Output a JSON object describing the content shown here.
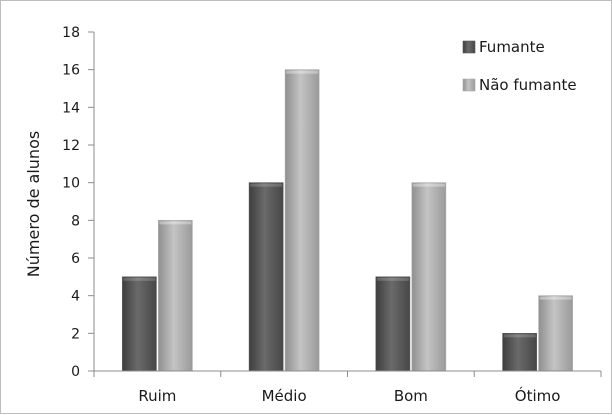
{
  "chart_data": {
    "type": "bar",
    "categories": [
      "Ruim",
      "Médio",
      "Bom",
      "Ótimo"
    ],
    "series": [
      {
        "name": "Fumante",
        "values": [
          5,
          10,
          5,
          2
        ],
        "color": "#555555"
      },
      {
        "name": "Não fumante",
        "values": [
          8,
          16,
          10,
          4
        ],
        "color": "#ababab"
      }
    ],
    "ylabel": "Número de alunos",
    "xlabel": "",
    "ylim": [
      0,
      18
    ],
    "yticks": [
      "0",
      "2",
      "4",
      "6",
      "8",
      "10",
      "12",
      "14",
      "16",
      "18"
    ],
    "grid": false,
    "legend_position": "top-right"
  }
}
